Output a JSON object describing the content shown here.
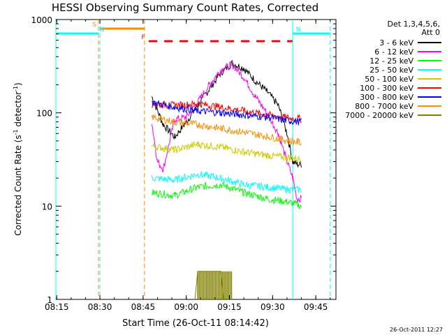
{
  "chart_data": {
    "type": "line",
    "title": "HESSI Observing Summary Count Rates, Corrected",
    "xlabel": "Start Time (26-Oct-11 08:14:42)",
    "ylabel": "Corrected Count Rate (s",
    "ylabel_sup1": "-1",
    "ylabel_mid": " detector",
    "ylabel_sup2": "-1",
    "ylabel_end": ")",
    "footer": "26-Oct-2011 12:27",
    "y_scale": "log",
    "ylim": [
      1,
      1000
    ],
    "xlim": [
      "08:14:42",
      "09:52:00"
    ],
    "x_ticks": [
      "08:15",
      "08:30",
      "08:45",
      "09:00",
      "09:15",
      "09:30",
      "09:45"
    ],
    "y_ticks": [
      "1",
      "10",
      "100",
      "1000"
    ],
    "grid": false,
    "legend_position": "top-right",
    "legend_title": [
      "Det 1,3,4,5,6,",
      "Att 0"
    ],
    "series": [
      {
        "name": "3 - 6 keV",
        "color": "#000000",
        "x": [
          "08:26:30",
          "08:28:00",
          "08:46:30",
          "08:48:00",
          "08:52:00",
          "08:56:00",
          "09:00:00",
          "09:04:00",
          "09:08:00",
          "09:12:00",
          "09:16:00",
          "09:20:00",
          "09:24:00",
          "09:28:00",
          "09:32:00",
          "09:35:00",
          "09:37:00",
          "09:38:30",
          "09:40:00"
        ],
        "values": [
          null,
          30,
          null,
          150,
          75,
          55,
          80,
          120,
          180,
          270,
          340,
          300,
          220,
          170,
          120,
          60,
          30,
          28,
          28
        ]
      },
      {
        "name": "6 - 12 keV",
        "color": "#ff00ff",
        "x": [
          "08:26:30",
          "08:28:00",
          "08:46:30",
          "08:48:00",
          "08:50:00",
          "08:52:00",
          "08:56:00",
          "09:00:00",
          "09:04:00",
          "09:08:00",
          "09:12:00",
          "09:16:00",
          "09:20:00",
          "09:24:00",
          "09:28:00",
          "09:32:00",
          "09:35:00",
          "09:37:00",
          "09:38:30",
          "09:40:00"
        ],
        "values": [
          null,
          15,
          null,
          80,
          30,
          25,
          85,
          90,
          130,
          200,
          290,
          330,
          240,
          150,
          100,
          60,
          30,
          20,
          12,
          12
        ]
      },
      {
        "name": "12 - 25 keV",
        "color": "#00ff00",
        "x": [
          "08:26:30",
          "08:28:00",
          "08:46:30",
          "08:48:00",
          "08:56:00",
          "09:04:00",
          "09:12:00",
          "09:20:00",
          "09:28:00",
          "09:36:00",
          "09:40:00"
        ],
        "values": [
          null,
          7,
          null,
          14,
          13,
          16,
          17,
          14,
          12,
          11,
          10
        ]
      },
      {
        "name": "25 - 50 keV",
        "color": "#00ffff",
        "x": [
          "08:26:30",
          "08:28:00",
          "08:46:30",
          "08:48:00",
          "08:56:00",
          "09:04:00",
          "09:12:00",
          "09:20:00",
          "09:28:00",
          "09:36:00",
          "09:40:00"
        ],
        "values": [
          null,
          13,
          null,
          20,
          19,
          22,
          20,
          17,
          16,
          15,
          15
        ]
      },
      {
        "name": "50 - 100 keV",
        "color": "#cccc00",
        "x": [
          "08:26:30",
          "08:28:00",
          "08:46:30",
          "08:48:00",
          "08:56:00",
          "09:04:00",
          "09:12:00",
          "09:20:00",
          "09:28:00",
          "09:36:00",
          "09:40:00"
        ],
        "values": [
          null,
          28,
          null,
          44,
          40,
          46,
          43,
          38,
          35,
          33,
          32
        ]
      },
      {
        "name": "100 - 300 keV",
        "color": "#ff0000",
        "x": [
          "08:26:30",
          "08:28:00",
          "08:46:30",
          "08:48:00",
          "08:56:00",
          "09:04:00",
          "09:12:00",
          "09:20:00",
          "09:28:00",
          "09:36:00",
          "09:40:00"
        ],
        "values": [
          null,
          85,
          null,
          125,
          120,
          125,
          115,
          105,
          95,
          88,
          86
        ]
      },
      {
        "name": "300 - 800 keV",
        "color": "#0000ff",
        "x": [
          "08:26:30",
          "08:28:00",
          "08:46:30",
          "08:48:00",
          "08:56:00",
          "09:04:00",
          "09:12:00",
          "09:20:00",
          "09:28:00",
          "09:36:00",
          "09:40:00"
        ],
        "values": [
          null,
          60,
          null,
          130,
          115,
          105,
          100,
          95,
          90,
          82,
          80
        ]
      },
      {
        "name": "800 - 7000 keV",
        "color": "#ff8c00",
        "x": [
          "08:26:30",
          "08:28:00",
          "08:46:30",
          "08:48:00",
          "08:56:00",
          "09:04:00",
          "09:12:00",
          "09:20:00",
          "09:28:00",
          "09:36:00",
          "09:40:00"
        ],
        "values": [
          null,
          45,
          null,
          90,
          80,
          75,
          68,
          62,
          56,
          50,
          48
        ]
      },
      {
        "name": "7000 - 20000 keV",
        "color": "#808000",
        "x": [
          "09:03:00",
          "09:04:00",
          "09:06:00",
          "09:08:00",
          "09:10:00",
          "09:12:00",
          "09:13:00"
        ],
        "values": [
          1,
          2,
          2,
          2,
          2,
          2,
          1
        ]
      }
    ],
    "intervals": [
      {
        "label": "S",
        "start": "08:30:00",
        "end": "08:45:30",
        "color": "#ff8c00",
        "style": "solid"
      },
      {
        "label": "N",
        "start": "08:14:42",
        "end": "08:29:30",
        "color": "#00ffff",
        "style": "solid"
      },
      {
        "label": "N",
        "start": "09:37:00",
        "end": "09:50:00",
        "color": "#00ffff",
        "style": "solid"
      },
      {
        "label": "F",
        "start": "08:47:00",
        "end": "09:37:00",
        "color": "#ff0000",
        "style": "dashed"
      }
    ]
  }
}
